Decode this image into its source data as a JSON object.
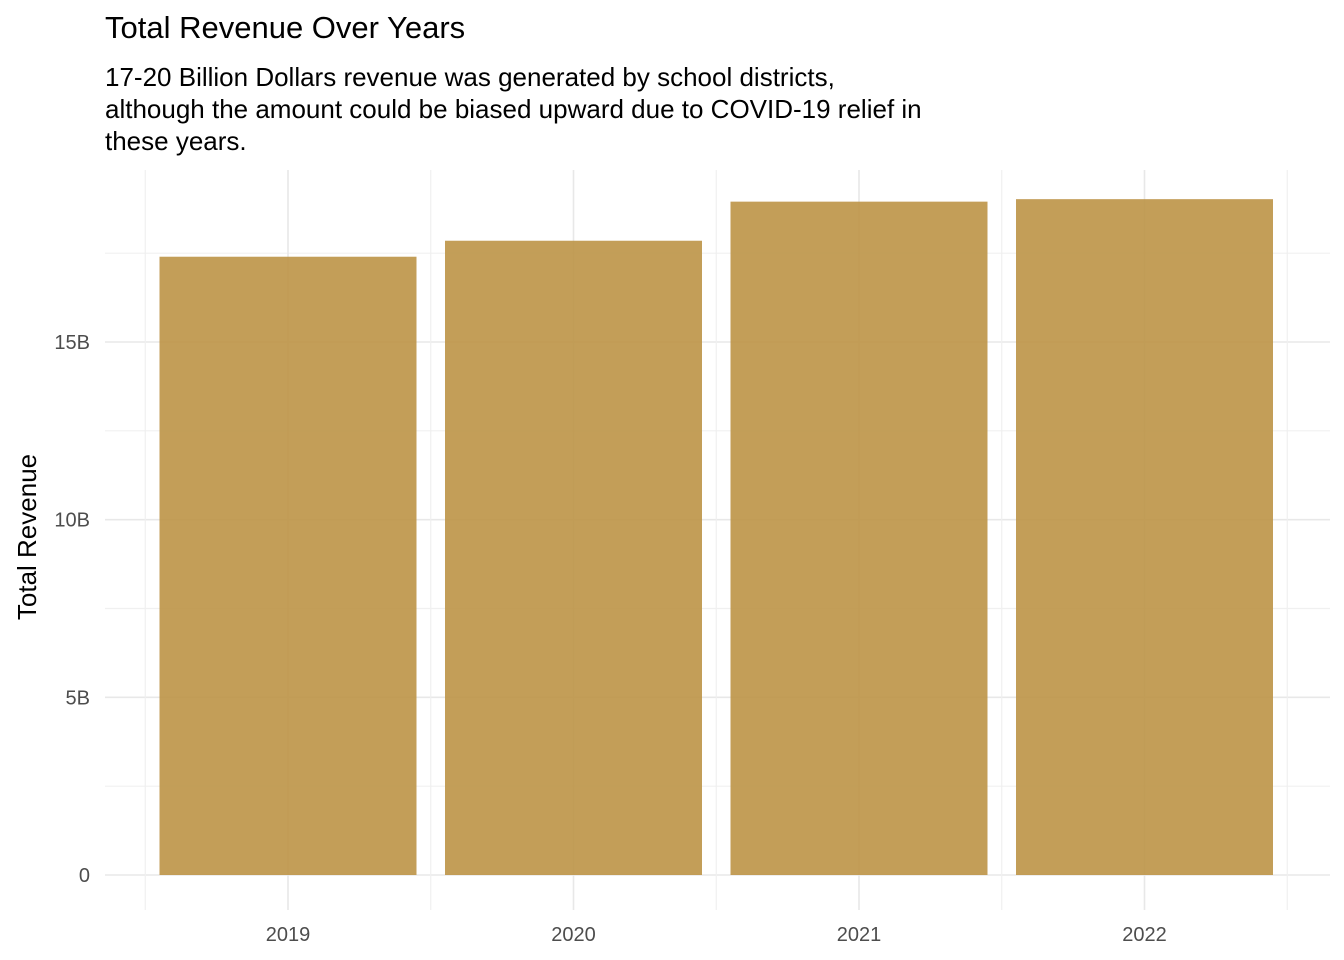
{
  "chart_data": {
    "type": "bar",
    "title": "Total Revenue Over Years",
    "subtitle": "17-20 Billion Dollars revenue was generated by school districts, although the amount could be biased upward due to COVID-19 relief in these years.",
    "xlabel": "",
    "ylabel": "Total Revenue",
    "categories": [
      "2019",
      "2020",
      "2021",
      "2022"
    ],
    "values": [
      17400000000,
      17850000000,
      18950000000,
      19020000000
    ],
    "ylim": [
      0,
      20000000000
    ],
    "yticks": [
      0,
      5000000000,
      10000000000,
      15000000000
    ],
    "ytick_labels": [
      "0",
      "5B",
      "10B",
      "15B"
    ],
    "bar_color": "#BC9446",
    "bar_opacity": 0.9,
    "grid": true,
    "legend": "none"
  }
}
